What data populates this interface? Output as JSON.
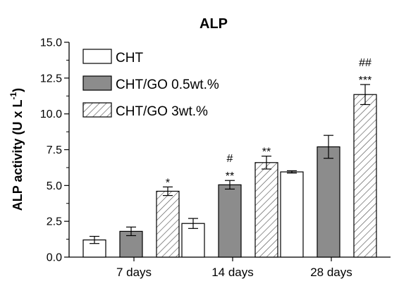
{
  "chart_data": {
    "type": "bar",
    "title": "ALP",
    "ylabel": "ALP activity (U x L",
    "ylabel_sup": "-1",
    "ylabel_close": ")",
    "xlabel": "",
    "ylim": [
      0,
      15
    ],
    "yticks": [
      "0.0",
      "2.5",
      "5.0",
      "7.5",
      "10.0",
      "12.5",
      "15.0"
    ],
    "ytick_values": [
      0,
      2.5,
      5,
      7.5,
      10,
      12.5,
      15
    ],
    "categories": [
      "7 days",
      "14 days",
      "28 days"
    ],
    "grid": false,
    "legend_position": "top-left",
    "series": [
      {
        "name": "CHT",
        "pattern": "white",
        "values": [
          1.2,
          2.35,
          5.95
        ],
        "errors": [
          0.25,
          0.35,
          0.08
        ]
      },
      {
        "name": "CHT/GO 0.5wt.%",
        "pattern": "gray",
        "values": [
          1.8,
          5.05,
          7.7
        ],
        "errors": [
          0.3,
          0.3,
          0.8
        ]
      },
      {
        "name": "CHT/GO 3wt.%",
        "pattern": "hatched",
        "values": [
          4.6,
          6.6,
          11.35
        ],
        "errors": [
          0.3,
          0.45,
          0.7
        ]
      }
    ],
    "annotations": [
      {
        "category": 0,
        "series": 2,
        "lines": [
          "*"
        ]
      },
      {
        "category": 1,
        "series": 1,
        "lines": [
          "#",
          "**"
        ]
      },
      {
        "category": 1,
        "series": 2,
        "lines": [
          "**"
        ]
      },
      {
        "category": 2,
        "series": 2,
        "lines": [
          "##",
          "***"
        ]
      }
    ],
    "colors": {
      "axis": "#000000",
      "gray_fill": "#8c8c8c",
      "white_fill": "#ffffff",
      "hatch": "#555555"
    }
  }
}
